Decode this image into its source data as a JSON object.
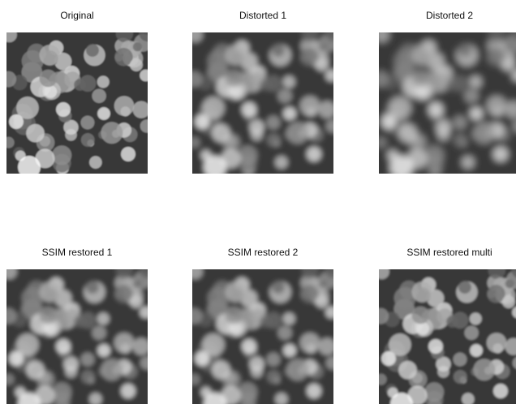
{
  "panels": [
    {
      "title": "Original"
    },
    {
      "title": "Distorted 1"
    },
    {
      "title": "Distorted 2"
    },
    {
      "title": "SSIM restored 1"
    },
    {
      "title": "SSIM restored 2"
    },
    {
      "title": "SSIM restored multi"
    }
  ]
}
